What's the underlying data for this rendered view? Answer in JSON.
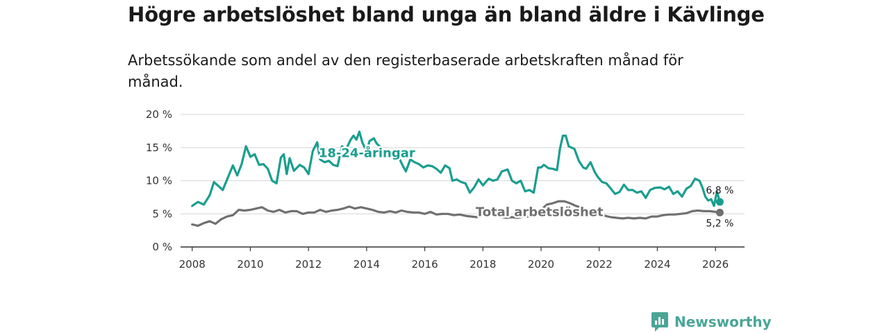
{
  "chart_data": {
    "type": "line",
    "title": "Högre arbetslöshet bland unga än bland äldre i Kävlinge",
    "subtitle": "Arbetssökande som andel av den registerbaserade arbetskraften månad för månad.",
    "xlabel": "",
    "ylabel": "",
    "xlim": [
      2007.6,
      2027.0
    ],
    "ylim": [
      0,
      20
    ],
    "x_ticks": [
      2008,
      2010,
      2012,
      2014,
      2016,
      2018,
      2020,
      2022,
      2024,
      2026
    ],
    "y_ticks": [
      0,
      5,
      10,
      15,
      20
    ],
    "y_tick_labels": [
      "0 %",
      "5 %",
      "10 %",
      "15 %",
      "20 %"
    ],
    "grid": true,
    "series": [
      {
        "name": "18-24-åringar",
        "color": "#1a9e8f",
        "end_label": "6,8 %",
        "points": [
          [
            2008.0,
            6.2
          ],
          [
            2008.2,
            6.8
          ],
          [
            2008.4,
            6.4
          ],
          [
            2008.6,
            7.8
          ],
          [
            2008.75,
            9.8
          ],
          [
            2008.9,
            9.2
          ],
          [
            2009.05,
            8.6
          ],
          [
            2009.2,
            10.2
          ],
          [
            2009.4,
            12.3
          ],
          [
            2009.55,
            10.8
          ],
          [
            2009.7,
            12.5
          ],
          [
            2009.85,
            15.2
          ],
          [
            2010.0,
            13.6
          ],
          [
            2010.15,
            14.0
          ],
          [
            2010.3,
            12.4
          ],
          [
            2010.45,
            12.5
          ],
          [
            2010.6,
            11.8
          ],
          [
            2010.75,
            10.0
          ],
          [
            2010.9,
            9.6
          ],
          [
            2011.05,
            13.5
          ],
          [
            2011.15,
            14.0
          ],
          [
            2011.25,
            11.0
          ],
          [
            2011.35,
            13.4
          ],
          [
            2011.5,
            11.5
          ],
          [
            2011.7,
            12.4
          ],
          [
            2011.85,
            12.0
          ],
          [
            2012.0,
            11.0
          ],
          [
            2012.15,
            14.5
          ],
          [
            2012.3,
            15.8
          ],
          [
            2012.4,
            13.2
          ],
          [
            2012.55,
            12.8
          ],
          [
            2012.7,
            13.0
          ],
          [
            2012.85,
            12.4
          ],
          [
            2013.0,
            12.2
          ],
          [
            2013.15,
            15.2
          ],
          [
            2013.3,
            14.8
          ],
          [
            2013.45,
            16.2
          ],
          [
            2013.55,
            16.8
          ],
          [
            2013.65,
            16.2
          ],
          [
            2013.75,
            17.4
          ],
          [
            2013.85,
            15.8
          ],
          [
            2014.0,
            14.4
          ],
          [
            2014.1,
            16.0
          ],
          [
            2014.25,
            16.4
          ],
          [
            2014.35,
            15.6
          ],
          [
            2014.5,
            15.0
          ],
          [
            2014.65,
            14.2
          ],
          [
            2014.8,
            14.0
          ],
          [
            2014.95,
            14.5
          ],
          [
            2015.1,
            13.6
          ],
          [
            2015.25,
            12.2
          ],
          [
            2015.35,
            11.4
          ],
          [
            2015.5,
            13.2
          ],
          [
            2015.65,
            12.8
          ],
          [
            2015.8,
            12.5
          ],
          [
            2015.95,
            12.0
          ],
          [
            2016.1,
            12.3
          ],
          [
            2016.25,
            12.2
          ],
          [
            2016.4,
            11.8
          ],
          [
            2016.55,
            11.2
          ],
          [
            2016.7,
            12.3
          ],
          [
            2016.85,
            11.9
          ],
          [
            2016.95,
            10.0
          ],
          [
            2017.1,
            10.2
          ],
          [
            2017.25,
            9.8
          ],
          [
            2017.4,
            9.6
          ],
          [
            2017.55,
            8.2
          ],
          [
            2017.7,
            9.0
          ],
          [
            2017.85,
            10.2
          ],
          [
            2018.0,
            9.3
          ],
          [
            2018.2,
            10.3
          ],
          [
            2018.35,
            10.0
          ],
          [
            2018.5,
            10.2
          ],
          [
            2018.65,
            11.4
          ],
          [
            2018.85,
            11.7
          ],
          [
            2019.0,
            10.0
          ],
          [
            2019.15,
            9.6
          ],
          [
            2019.3,
            10.0
          ],
          [
            2019.45,
            8.4
          ],
          [
            2019.6,
            8.6
          ],
          [
            2019.75,
            8.2
          ],
          [
            2019.9,
            12.0
          ],
          [
            2020.0,
            12.0
          ],
          [
            2020.1,
            12.4
          ],
          [
            2020.25,
            11.9
          ],
          [
            2020.4,
            11.8
          ],
          [
            2020.55,
            11.6
          ],
          [
            2020.65,
            14.8
          ],
          [
            2020.75,
            16.8
          ],
          [
            2020.85,
            16.8
          ],
          [
            2020.95,
            15.2
          ],
          [
            2021.05,
            15.0
          ],
          [
            2021.15,
            14.8
          ],
          [
            2021.3,
            13.0
          ],
          [
            2021.45,
            12.0
          ],
          [
            2021.55,
            11.8
          ],
          [
            2021.7,
            12.8
          ],
          [
            2021.85,
            11.3
          ],
          [
            2021.95,
            10.6
          ],
          [
            2022.1,
            9.8
          ],
          [
            2022.25,
            9.6
          ],
          [
            2022.4,
            8.8
          ],
          [
            2022.55,
            8.0
          ],
          [
            2022.7,
            8.3
          ],
          [
            2022.85,
            9.4
          ],
          [
            2023.0,
            8.6
          ],
          [
            2023.15,
            8.6
          ],
          [
            2023.3,
            8.2
          ],
          [
            2023.45,
            8.4
          ],
          [
            2023.6,
            7.4
          ],
          [
            2023.75,
            8.6
          ],
          [
            2023.9,
            8.9
          ],
          [
            2024.1,
            9.0
          ],
          [
            2024.25,
            8.7
          ],
          [
            2024.4,
            9.1
          ],
          [
            2024.55,
            8.0
          ],
          [
            2024.7,
            8.4
          ],
          [
            2024.85,
            7.6
          ],
          [
            2025.0,
            8.8
          ],
          [
            2025.15,
            9.2
          ],
          [
            2025.3,
            10.3
          ],
          [
            2025.45,
            10.0
          ],
          [
            2025.55,
            9.0
          ],
          [
            2025.65,
            7.6
          ],
          [
            2025.75,
            7.0
          ],
          [
            2025.85,
            7.2
          ],
          [
            2025.95,
            6.2
          ],
          [
            2026.05,
            8.4
          ],
          [
            2026.15,
            6.8
          ]
        ]
      },
      {
        "name": "Total arbetslöshet",
        "color": "#707070",
        "end_label": "5,2 %",
        "points": [
          [
            2008.0,
            3.4
          ],
          [
            2008.2,
            3.2
          ],
          [
            2008.4,
            3.6
          ],
          [
            2008.6,
            3.9
          ],
          [
            2008.8,
            3.5
          ],
          [
            2009.0,
            4.2
          ],
          [
            2009.2,
            4.6
          ],
          [
            2009.4,
            4.8
          ],
          [
            2009.6,
            5.6
          ],
          [
            2009.8,
            5.5
          ],
          [
            2010.0,
            5.6
          ],
          [
            2010.2,
            5.8
          ],
          [
            2010.4,
            6.0
          ],
          [
            2010.6,
            5.5
          ],
          [
            2010.8,
            5.3
          ],
          [
            2011.0,
            5.6
          ],
          [
            2011.2,
            5.2
          ],
          [
            2011.4,
            5.4
          ],
          [
            2011.6,
            5.4
          ],
          [
            2011.8,
            5.0
          ],
          [
            2012.0,
            5.2
          ],
          [
            2012.2,
            5.2
          ],
          [
            2012.4,
            5.6
          ],
          [
            2012.6,
            5.3
          ],
          [
            2012.8,
            5.5
          ],
          [
            2013.0,
            5.6
          ],
          [
            2013.2,
            5.8
          ],
          [
            2013.4,
            6.1
          ],
          [
            2013.6,
            5.8
          ],
          [
            2013.8,
            6.0
          ],
          [
            2014.0,
            5.8
          ],
          [
            2014.2,
            5.6
          ],
          [
            2014.4,
            5.3
          ],
          [
            2014.6,
            5.2
          ],
          [
            2014.8,
            5.4
          ],
          [
            2015.0,
            5.2
          ],
          [
            2015.2,
            5.5
          ],
          [
            2015.4,
            5.3
          ],
          [
            2015.6,
            5.2
          ],
          [
            2015.8,
            5.2
          ],
          [
            2016.0,
            5.0
          ],
          [
            2016.2,
            5.3
          ],
          [
            2016.4,
            4.9
          ],
          [
            2016.6,
            5.0
          ],
          [
            2016.8,
            5.0
          ],
          [
            2017.0,
            4.8
          ],
          [
            2017.2,
            4.9
          ],
          [
            2017.4,
            4.7
          ],
          [
            2017.6,
            4.6
          ],
          [
            2017.8,
            4.5
          ],
          [
            2018.0,
            4.8
          ],
          [
            2018.2,
            4.9
          ],
          [
            2018.4,
            4.7
          ],
          [
            2018.6,
            4.6
          ],
          [
            2018.8,
            4.4
          ],
          [
            2019.0,
            4.5
          ],
          [
            2019.2,
            4.4
          ],
          [
            2019.4,
            4.6
          ],
          [
            2019.6,
            4.6
          ],
          [
            2019.8,
            5.0
          ],
          [
            2020.0,
            5.6
          ],
          [
            2020.2,
            6.4
          ],
          [
            2020.4,
            6.6
          ],
          [
            2020.6,
            6.9
          ],
          [
            2020.8,
            6.9
          ],
          [
            2021.0,
            6.6
          ],
          [
            2021.2,
            6.2
          ],
          [
            2021.4,
            5.9
          ],
          [
            2021.6,
            5.6
          ],
          [
            2021.8,
            5.2
          ],
          [
            2022.0,
            4.9
          ],
          [
            2022.2,
            4.7
          ],
          [
            2022.4,
            4.5
          ],
          [
            2022.6,
            4.4
          ],
          [
            2022.8,
            4.3
          ],
          [
            2023.0,
            4.4
          ],
          [
            2023.2,
            4.3
          ],
          [
            2023.4,
            4.4
          ],
          [
            2023.6,
            4.3
          ],
          [
            2023.8,
            4.6
          ],
          [
            2024.0,
            4.6
          ],
          [
            2024.2,
            4.8
          ],
          [
            2024.4,
            4.9
          ],
          [
            2024.6,
            4.9
          ],
          [
            2024.8,
            5.0
          ],
          [
            2025.0,
            5.1
          ],
          [
            2025.2,
            5.4
          ],
          [
            2025.4,
            5.5
          ],
          [
            2025.6,
            5.4
          ],
          [
            2025.8,
            5.4
          ],
          [
            2026.0,
            5.3
          ],
          [
            2026.15,
            5.2
          ]
        ]
      }
    ],
    "inline_labels": [
      "18-24-åringar",
      "Total arbetslöshet"
    ]
  },
  "brand": {
    "name": "Newsworthy",
    "color": "#4aa596"
  }
}
